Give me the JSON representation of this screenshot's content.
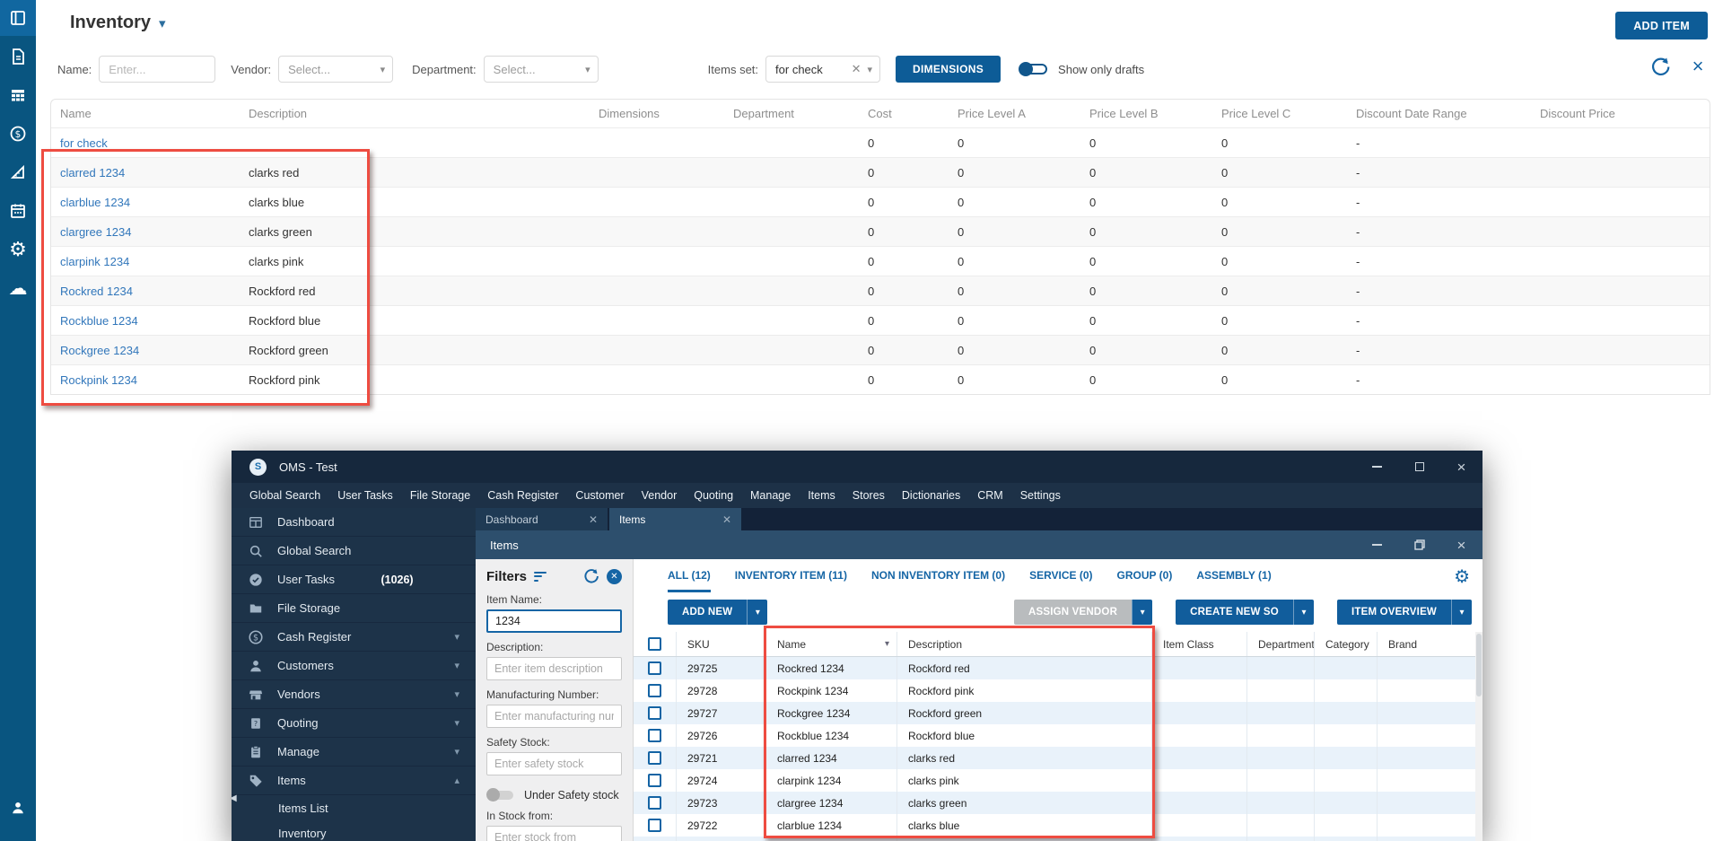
{
  "main": {
    "sidebar": {
      "items": [
        {
          "icon": "window",
          "active": true
        },
        {
          "icon": "document"
        },
        {
          "icon": "table"
        },
        {
          "icon": "dollar"
        },
        {
          "icon": "ruler"
        },
        {
          "icon": "calendar"
        },
        {
          "icon": "gear"
        },
        {
          "icon": "cloud"
        }
      ]
    },
    "header": {
      "title": "Inventory",
      "add_item": "ADD ITEM"
    },
    "filter_bar": {
      "name_label": "Name:",
      "name_placeholder": "Enter...",
      "vendor_label": "Vendor:",
      "vendor_value": "Select...",
      "department_label": "Department:",
      "department_value": "Select...",
      "items_set_label": "Items set:",
      "items_set_value": "for check",
      "dimensions_button": "DIMENSIONS",
      "show_only_drafts_label": "Show only drafts"
    },
    "table": {
      "columns": [
        "Name",
        "Description",
        "Dimensions",
        "Department",
        "Cost",
        "Price Level A",
        "Price Level B",
        "Price Level C",
        "Discount Date Range",
        "Discount Price"
      ],
      "rows": [
        {
          "name": "for check",
          "description": "",
          "cost": "0",
          "price_a": "0",
          "price_b": "0",
          "price_c": "0",
          "discount_date_range": "-",
          "discount_price": ""
        },
        {
          "name": "clarred 1234",
          "description": "clarks red",
          "cost": "0",
          "price_a": "0",
          "price_b": "0",
          "price_c": "0",
          "discount_date_range": "-",
          "discount_price": "",
          "alt": true
        },
        {
          "name": "clarblue 1234",
          "description": "clarks blue",
          "cost": "0",
          "price_a": "0",
          "price_b": "0",
          "price_c": "0",
          "discount_date_range": "-",
          "discount_price": ""
        },
        {
          "name": "clargree 1234",
          "description": "clarks green",
          "cost": "0",
          "price_a": "0",
          "price_b": "0",
          "price_c": "0",
          "discount_date_range": "-",
          "discount_price": "",
          "alt": true
        },
        {
          "name": "clarpink 1234",
          "description": "clarks pink",
          "cost": "0",
          "price_a": "0",
          "price_b": "0",
          "price_c": "0",
          "discount_date_range": "-",
          "discount_price": ""
        },
        {
          "name": "Rockred 1234",
          "description": "Rockford red",
          "cost": "0",
          "price_a": "0",
          "price_b": "0",
          "price_c": "0",
          "discount_date_range": "-",
          "discount_price": "",
          "alt": true
        },
        {
          "name": "Rockblue 1234",
          "description": "Rockford blue",
          "cost": "0",
          "price_a": "0",
          "price_b": "0",
          "price_c": "0",
          "discount_date_range": "-",
          "discount_price": ""
        },
        {
          "name": "Rockgree 1234",
          "description": "Rockford green",
          "cost": "0",
          "price_a": "0",
          "price_b": "0",
          "price_c": "0",
          "discount_date_range": "-",
          "discount_price": "",
          "alt": true
        },
        {
          "name": "Rockpink 1234",
          "description": "Rockford pink",
          "cost": "0",
          "price_a": "0",
          "price_b": "0",
          "price_c": "0",
          "discount_date_range": "-",
          "discount_price": ""
        }
      ]
    }
  },
  "oms": {
    "title": "OMS - Test",
    "menu": [
      "Global Search",
      "User Tasks",
      "File Storage",
      "Cash Register",
      "Customer",
      "Vendor",
      "Quoting",
      "Manage",
      "Items",
      "Stores",
      "Dictionaries",
      "CRM",
      "Settings"
    ],
    "tabs": [
      {
        "label": "Dashboard",
        "active": false
      },
      {
        "label": "Items",
        "active": true
      }
    ],
    "nav": [
      {
        "icon": "grid",
        "label": "Dashboard"
      },
      {
        "icon": "search",
        "label": "Global Search"
      },
      {
        "icon": "check-circle",
        "label": "User Tasks",
        "badge": "(1026)"
      },
      {
        "icon": "folder",
        "label": "File Storage"
      },
      {
        "icon": "dollar",
        "label": "Cash Register",
        "chevron": "down"
      },
      {
        "icon": "person",
        "label": "Customers",
        "chevron": "down"
      },
      {
        "icon": "store",
        "label": "Vendors",
        "chevron": "down"
      },
      {
        "icon": "quote",
        "label": "Quoting",
        "chevron": "down"
      },
      {
        "icon": "clipboard",
        "label": "Manage",
        "chevron": "down"
      },
      {
        "icon": "tag",
        "label": "Items",
        "chevron": "up"
      },
      {
        "label": "Items List",
        "child": true
      },
      {
        "label": "Inventory",
        "child": true
      }
    ],
    "panel_title": "Items",
    "filters": {
      "title": "Filters",
      "item_name_label": "Item Name:",
      "item_name_value": "1234",
      "description_label": "Description:",
      "description_placeholder": "Enter item description",
      "manufacturing_label": "Manufacturing Number:",
      "manufacturing_placeholder": "Enter manufacturing number",
      "safety_stock_label": "Safety Stock:",
      "safety_stock_placeholder": "Enter safety stock",
      "under_safety_label": "Under Safety stock",
      "in_stock_label": "In Stock from:",
      "in_stock_placeholder": "Enter stock from"
    },
    "item_tabs": [
      {
        "label": "ALL (12)",
        "active": true
      },
      {
        "label": "INVENTORY ITEM (11)"
      },
      {
        "label": "NON INVENTORY ITEM (0)"
      },
      {
        "label": "SERVICE (0)"
      },
      {
        "label": "GROUP (0)"
      },
      {
        "label": "ASSEMBLY (1)"
      }
    ],
    "actions": {
      "add_new": "ADD NEW",
      "assign_vendor": "ASSIGN VENDOR",
      "create_new_so": "CREATE NEW SO",
      "item_overview": "ITEM OVERVIEW"
    },
    "table": {
      "columns": [
        "SKU",
        "Name",
        "Description",
        "Item Class",
        "Department",
        "Category",
        "Brand"
      ],
      "rows": [
        {
          "sku": "29725",
          "name": "Rockred 1234",
          "description": "Rockford red",
          "alt": true
        },
        {
          "sku": "29728",
          "name": "Rockpink 1234",
          "description": "Rockford pink"
        },
        {
          "sku": "29727",
          "name": "Rockgree 1234",
          "description": "Rockford green",
          "alt": true
        },
        {
          "sku": "29726",
          "name": "Rockblue 1234",
          "description": "Rockford blue"
        },
        {
          "sku": "29721",
          "name": "clarred 1234",
          "description": "clarks red",
          "alt": true
        },
        {
          "sku": "29724",
          "name": "clarpink 1234",
          "description": "clarks pink"
        },
        {
          "sku": "29723",
          "name": "clargree 1234",
          "description": "clarks green",
          "alt": true
        },
        {
          "sku": "29722",
          "name": "clarblue 1234",
          "description": "clarks blue"
        },
        {
          "sku": "",
          "name": "",
          "description": "",
          "alt": true
        }
      ]
    }
  },
  "colors": {
    "accent_blue": "#0d5c97",
    "oms_accent": "#1565a5",
    "highlight_red": "#ee4c41",
    "link_blue": "#3277bb"
  }
}
